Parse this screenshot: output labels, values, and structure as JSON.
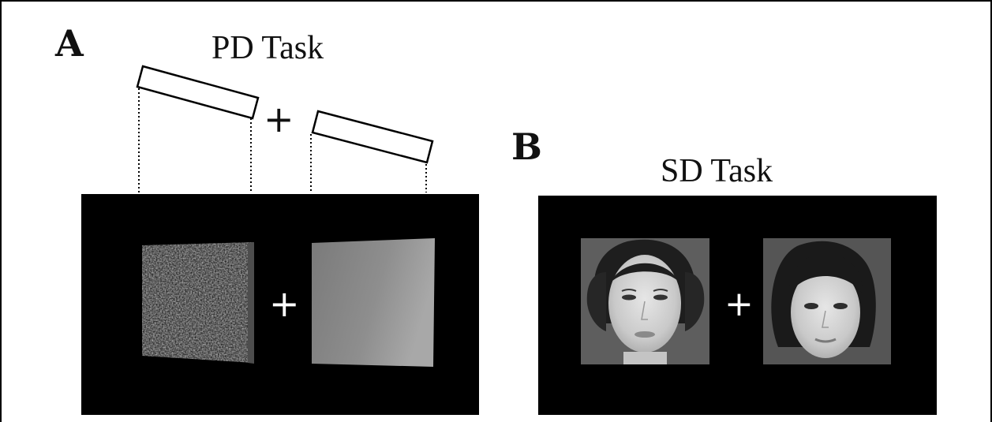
{
  "panels": {
    "a": {
      "letter": "A",
      "title": "PD Task",
      "fixation": "+",
      "stimuli": [
        "rough-texture-square",
        "smooth-texture-square"
      ]
    },
    "b": {
      "letter": "B",
      "title": "SD Task",
      "fixation": "+",
      "stimuli": [
        "face-photo-short-hair",
        "face-photo-bob-hair"
      ]
    }
  },
  "colors": {
    "panel_background": "#000000",
    "fixation": "#ffffff",
    "texture_fill": "#8a8a8a",
    "face_background": "#5a5a5a"
  }
}
